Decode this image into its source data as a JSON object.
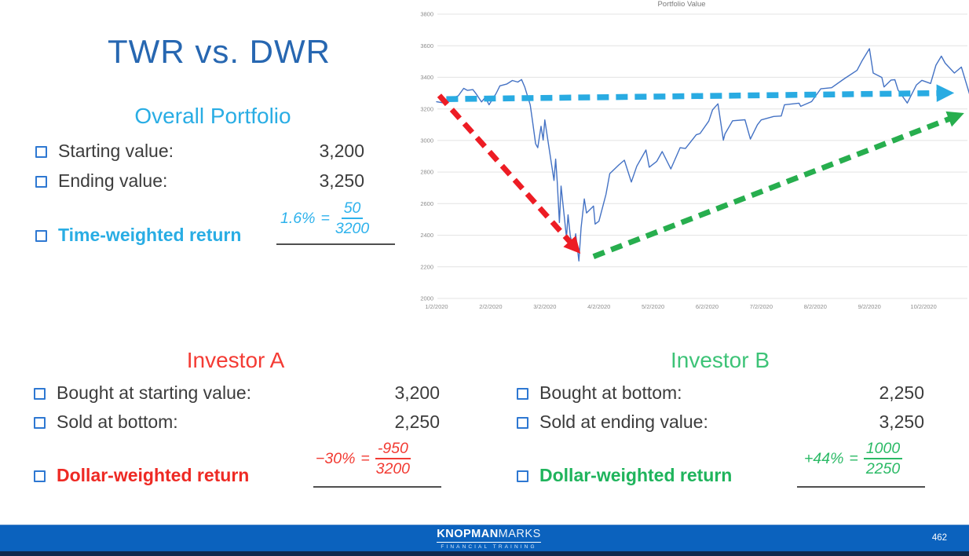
{
  "slide": {
    "title": "TWR vs. DWR",
    "overall": {
      "heading": "Overall Portfolio",
      "rows": [
        {
          "label": "Starting value:",
          "value": "3,200"
        },
        {
          "label": "Ending value:",
          "value": "3,250"
        }
      ],
      "return_label": "Time-weighted return",
      "formula": {
        "result": "1.6%",
        "equals": "=",
        "numerator": "50",
        "denominator": "3200"
      }
    },
    "investor_a": {
      "heading": "Investor A",
      "rows": [
        {
          "label": "Bought at starting value:",
          "value": "3,200"
        },
        {
          "label": "Sold at bottom:",
          "value": "2,250"
        }
      ],
      "return_label": "Dollar-weighted return",
      "formula": {
        "result": "−30%",
        "equals": "=",
        "numerator": "-950",
        "denominator": "3200"
      }
    },
    "investor_b": {
      "heading": "Investor B",
      "rows": [
        {
          "label": "Bought at bottom:",
          "value": "2,250"
        },
        {
          "label": "Sold at ending value:",
          "value": "3,250"
        }
      ],
      "return_label": "Dollar-weighted return",
      "formula": {
        "result": "+44%",
        "equals": "=",
        "numerator": "1000",
        "denominator": "2250"
      }
    },
    "footer": {
      "brand_bold": "KNOPMAN",
      "brand_light": "MARKS",
      "tagline": "FINANCIAL TRAINING",
      "page_number": "462"
    }
  },
  "colors": {
    "title_blue": "#2767b1",
    "cyan": "#29ade4",
    "red_heading": "#f43b34",
    "red_bold": "#ee2a24",
    "green_heading": "#3dc377",
    "green_bold": "#1fb45c",
    "bullet_blue": "#2e78d2",
    "body_text": "#3c3c3c",
    "footer_blue": "#0b62be",
    "footer_strip": "#10294d"
  },
  "chart_data": {
    "type": "line",
    "title": "Portfolio Value",
    "x_tick_labels": [
      "1/2/2020",
      "2/2/2020",
      "3/2/2020",
      "4/2/2020",
      "5/2/2020",
      "6/2/2020",
      "7/2/2020",
      "8/2/2020",
      "9/2/2020",
      "10/2/2020"
    ],
    "y_ticks": [
      2000,
      2200,
      2400,
      2600,
      2800,
      3000,
      3200,
      3400,
      3600,
      3800
    ],
    "ylim": [
      2000,
      3800
    ],
    "grid": "horizontal-only",
    "legend": "none",
    "series": [
      {
        "name": "Portfolio Value",
        "color": "#4472c4",
        "points": [
          [
            0,
            3245
          ],
          [
            0.13,
            3238
          ],
          [
            0.2,
            3255
          ],
          [
            0.27,
            3266
          ],
          [
            0.4,
            3283
          ],
          [
            0.5,
            3330
          ],
          [
            0.57,
            3317
          ],
          [
            0.67,
            3322
          ],
          [
            0.73,
            3296
          ],
          [
            0.83,
            3244
          ],
          [
            0.9,
            3273
          ],
          [
            0.97,
            3226
          ],
          [
            1.1,
            3298
          ],
          [
            1.17,
            3346
          ],
          [
            1.3,
            3358
          ],
          [
            1.4,
            3380
          ],
          [
            1.5,
            3370
          ],
          [
            1.57,
            3386
          ],
          [
            1.63,
            3338
          ],
          [
            1.73,
            3226
          ],
          [
            1.77,
            3128
          ],
          [
            1.83,
            2979
          ],
          [
            1.87,
            2954
          ],
          [
            1.93,
            3090
          ],
          [
            1.97,
            3003
          ],
          [
            2,
            3130
          ],
          [
            2.07,
            2972
          ],
          [
            2.17,
            2747
          ],
          [
            2.2,
            2882
          ],
          [
            2.23,
            2741
          ],
          [
            2.27,
            2481
          ],
          [
            2.3,
            2711
          ],
          [
            2.4,
            2386
          ],
          [
            2.43,
            2529
          ],
          [
            2.47,
            2398
          ],
          [
            2.53,
            2305
          ],
          [
            2.57,
            2409
          ],
          [
            2.63,
            2237
          ],
          [
            2.67,
            2447
          ],
          [
            2.73,
            2630
          ],
          [
            2.77,
            2541
          ],
          [
            2.9,
            2585
          ],
          [
            2.93,
            2471
          ],
          [
            3,
            2489
          ],
          [
            3.13,
            2659
          ],
          [
            3.2,
            2790
          ],
          [
            3.37,
            2846
          ],
          [
            3.47,
            2875
          ],
          [
            3.6,
            2737
          ],
          [
            3.7,
            2837
          ],
          [
            3.87,
            2940
          ],
          [
            3.93,
            2831
          ],
          [
            4.07,
            2868
          ],
          [
            4.17,
            2930
          ],
          [
            4.33,
            2820
          ],
          [
            4.5,
            2954
          ],
          [
            4.6,
            2949
          ],
          [
            4.8,
            3036
          ],
          [
            4.87,
            3044
          ],
          [
            5.03,
            3123
          ],
          [
            5.1,
            3194
          ],
          [
            5.2,
            3232
          ],
          [
            5.3,
            3002
          ],
          [
            5.33,
            3041
          ],
          [
            5.47,
            3125
          ],
          [
            5.7,
            3131
          ],
          [
            5.8,
            3009
          ],
          [
            5.93,
            3100
          ],
          [
            6,
            3130
          ],
          [
            6.23,
            3152
          ],
          [
            6.37,
            3155
          ],
          [
            6.43,
            3226
          ],
          [
            6.7,
            3236
          ],
          [
            6.73,
            3216
          ],
          [
            6.93,
            3246
          ],
          [
            7.1,
            3327
          ],
          [
            7.3,
            3334
          ],
          [
            7.53,
            3390
          ],
          [
            7.77,
            3444
          ],
          [
            7.87,
            3508
          ],
          [
            8,
            3581
          ],
          [
            8.07,
            3427
          ],
          [
            8.23,
            3399
          ],
          [
            8.27,
            3339
          ],
          [
            8.4,
            3383
          ],
          [
            8.47,
            3385
          ],
          [
            8.53,
            3319
          ],
          [
            8.7,
            3237
          ],
          [
            8.87,
            3352
          ],
          [
            8.97,
            3381
          ],
          [
            9.13,
            3361
          ],
          [
            9.23,
            3477
          ],
          [
            9.33,
            3534
          ],
          [
            9.4,
            3489
          ],
          [
            9.57,
            3427
          ],
          [
            9.7,
            3465
          ],
          [
            9.87,
            3271
          ],
          [
            9.93,
            3310
          ]
        ]
      }
    ],
    "annotations": [
      {
        "name": "twr-arrow",
        "meaning": "time-weighted return: start 3,200 to end 3,250",
        "color": "#29abe2",
        "width": 7.5,
        "from": [
          0.18,
          3262
        ],
        "to": [
          9.28,
          3300
        ]
      },
      {
        "name": "investor-a-arrow",
        "meaning": "bought at start 3,200, sold at bottom 2,250",
        "color": "#ed1c24",
        "width": 7,
        "from": [
          0.05,
          3285
        ],
        "to": [
          2.48,
          2352
        ]
      },
      {
        "name": "investor-b-arrow",
        "meaning": "bought at bottom 2,250, sold at end 3,250",
        "color": "#27ae4e",
        "width": 7,
        "from": [
          2.9,
          2265
        ],
        "to": [
          9.5,
          3140
        ]
      }
    ]
  }
}
